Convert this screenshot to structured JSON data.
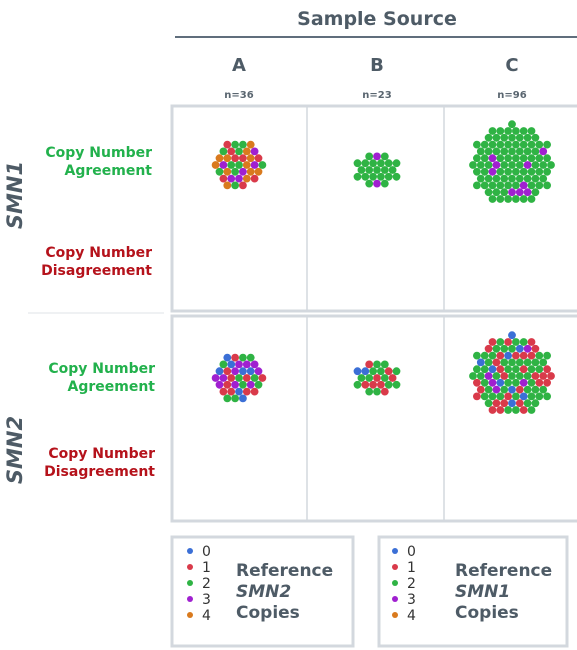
{
  "title": "Sample Source",
  "columns": [
    {
      "label": "A",
      "n": "n=36"
    },
    {
      "label": "B",
      "n": "n=23"
    },
    {
      "label": "C",
      "n": "n=96"
    }
  ],
  "genes": [
    "SMN1",
    "SMN2"
  ],
  "row_labels": {
    "agree": [
      "Copy Number",
      "Agreement"
    ],
    "disagree": [
      "Copy Number",
      "Disagreement"
    ]
  },
  "legends": [
    {
      "keys": [
        "0",
        "1",
        "2",
        "3",
        "4"
      ],
      "label_top": "Reference",
      "gene": "SMN2",
      "label_bottom": "Copies"
    },
    {
      "keys": [
        "0",
        "1",
        "2",
        "3",
        "4"
      ],
      "label_top": "Reference",
      "gene": "SMN1",
      "label_bottom": "Copies"
    }
  ],
  "colors": {
    "0": "#3b6fd6",
    "1": "#d93a4a",
    "2": "#2fb344",
    "3": "#a020d0",
    "4": "#d97a1e",
    "agree_text": "#22b14c",
    "disagree_text": "#b5121b",
    "panel_border": "#d3d8de"
  },
  "chart_data": {
    "type": "scatter",
    "description_free": true,
    "panels": [
      {
        "gene": "SMN1",
        "source": "A",
        "agreement_counts": {
          "1": 8,
          "2": 10,
          "3": 6,
          "4": 12
        }
      },
      {
        "gene": "SMN1",
        "source": "B",
        "agreement_counts": {
          "2": 21,
          "3": 2
        }
      },
      {
        "gene": "SMN1",
        "source": "C",
        "agreement_counts": {
          "2": 87,
          "3": 9
        }
      },
      {
        "gene": "SMN2",
        "source": "A",
        "agreement_counts": {
          "0": 7,
          "1": 10,
          "2": 9,
          "3": 10
        }
      },
      {
        "gene": "SMN2",
        "source": "B",
        "agreement_counts": {
          "0": 2,
          "1": 8,
          "2": 13
        }
      },
      {
        "gene": "SMN2",
        "source": "C",
        "agreement_counts": {
          "0": 9,
          "1": 30,
          "2": 52,
          "3": 5
        }
      }
    ]
  }
}
